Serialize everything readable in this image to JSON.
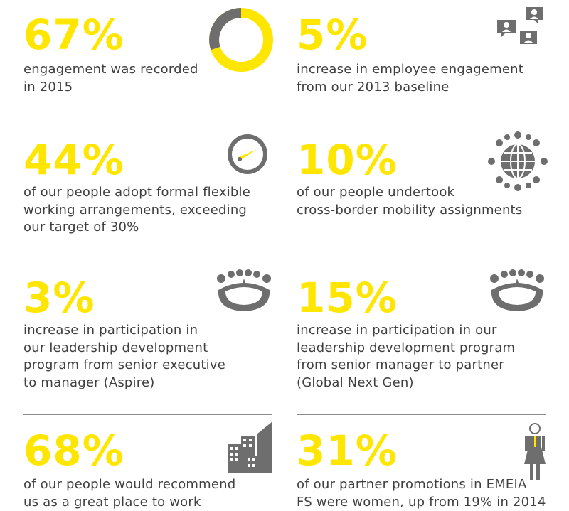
{
  "stats": [
    {
      "value": "67%",
      "text": "engagement was recorded\nin 2015",
      "icon": "donut-chart-icon"
    },
    {
      "value": "5%",
      "text": "increase in employee engagement\nfrom our 2013 baseline",
      "icon": "people-chat-icon"
    },
    {
      "value": "44%",
      "text": "of our people adopt formal flexible\nworking arrangements, exceeding\nour target of 30%",
      "icon": "gauge-icon"
    },
    {
      "value": "10%",
      "text": "of our people undertook\ncross-border mobility assignments",
      "icon": "globe-people-icon"
    },
    {
      "value": "3%",
      "text": "increase in participation in\nour leadership development\nprogram from senior executive\nto manager (Aspire)",
      "icon": "meeting-table-icon"
    },
    {
      "value": "15%",
      "text": "increase in participation in our\nleadership development program\nfrom senior manager to partner\n(Global Next Gen)",
      "icon": "meeting-table-icon"
    },
    {
      "value": "68%",
      "text": "of our people would recommend\nus as a great place to work",
      "icon": "buildings-icon"
    },
    {
      "value": "31%",
      "text": "of our partner promotions in EMEIA\nFS were women, up from 19% in 2014",
      "icon": "woman-icon"
    }
  ],
  "colors": {
    "accent": "#ffe600",
    "text": "#3f3f3f",
    "icon": "#6e6e6e",
    "rule": "#8a8a8a"
  }
}
